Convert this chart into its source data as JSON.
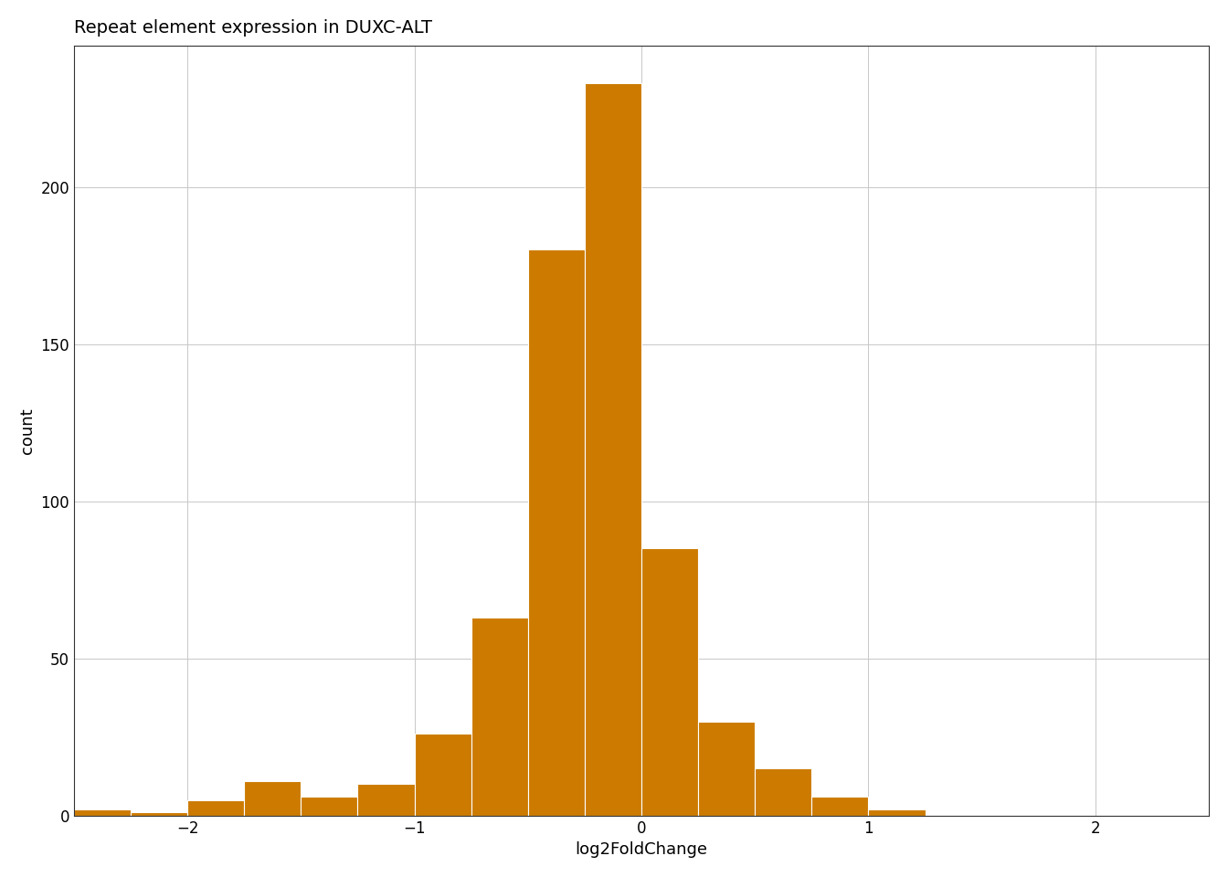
{
  "title": "Repeat element expression in DUXC-ALT",
  "xlabel": "log2FoldChange",
  "ylabel": "count",
  "bar_color": "#CC7A00",
  "bar_edgecolor": "white",
  "background_color": "#ffffff",
  "grid_color": "#c8c8c8",
  "xlim": [
    -2.5,
    2.5
  ],
  "ylim": [
    0,
    245
  ],
  "xticks": [
    -2,
    -1,
    0,
    1,
    2
  ],
  "yticks": [
    0,
    50,
    100,
    150,
    200
  ],
  "bin_edges": [
    -2.375,
    -2.125,
    -1.875,
    -1.625,
    -1.375,
    -1.125,
    -0.875,
    -0.625,
    -0.375,
    -0.125,
    0.125,
    0.375,
    0.625,
    0.875,
    1.125,
    1.375
  ],
  "bin_counts": [
    2,
    1,
    5,
    11,
    6,
    10,
    26,
    63,
    180,
    233,
    85,
    30,
    15,
    6,
    2,
    0
  ],
  "bin_width": 0.25,
  "title_fontsize": 14,
  "axis_fontsize": 13,
  "tick_fontsize": 12
}
